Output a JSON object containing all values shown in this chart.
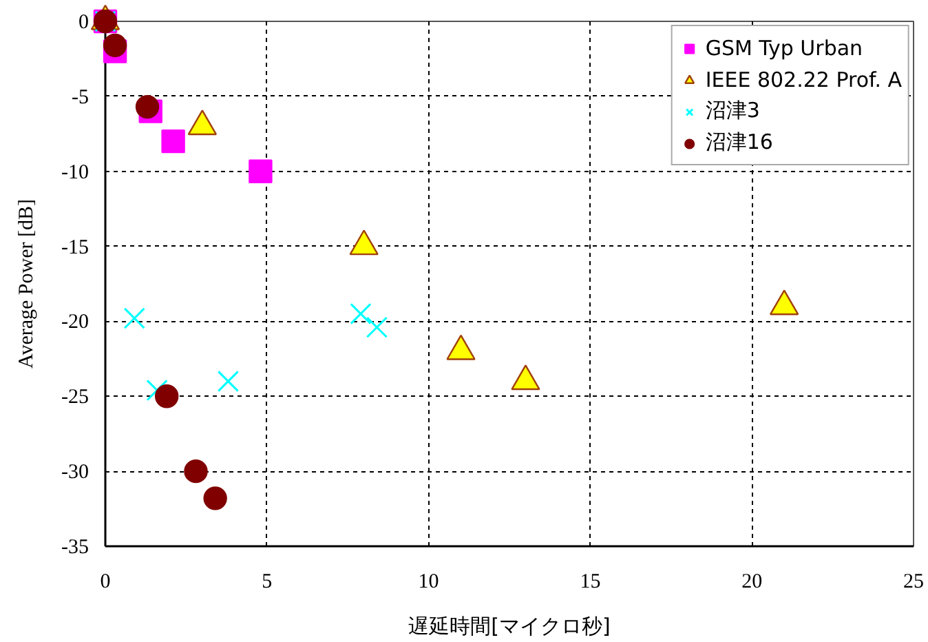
{
  "chart_data": {
    "type": "scatter",
    "xlabel": "遅延時間[マイクロ秒]",
    "ylabel": "Average Power [dB]",
    "xlim": [
      0,
      25
    ],
    "ylim": [
      -35,
      0
    ],
    "xticks": [
      0,
      5,
      10,
      15,
      20,
      25
    ],
    "yticks": [
      -35,
      -30,
      -25,
      -20,
      -15,
      -10,
      -5,
      0
    ],
    "grid": true,
    "legend": "top right",
    "series": [
      {
        "name": "GSM Typ Urban",
        "color": "#ff00ff",
        "marker": "square",
        "x": [
          0,
          0.3,
          1.4,
          2.1,
          4.8
        ],
        "values": [
          0,
          -2,
          -6,
          -8,
          -10
        ]
      },
      {
        "name": "IEEE 802.22 Prof. A",
        "color": "#ffff00",
        "marker": "triangle",
        "x": [
          0,
          3,
          8,
          11,
          13,
          21
        ],
        "values": [
          0,
          -7,
          -15,
          -22,
          -24,
          -19
        ]
      },
      {
        "name": "沼津3",
        "color": "#00ffff",
        "marker": "cross",
        "x": [
          0,
          0.9,
          1.6,
          3.8,
          7.9,
          8.4
        ],
        "values": [
          0,
          -19.8,
          -24.6,
          -24,
          -19.5,
          -20.4
        ]
      },
      {
        "name": "沼津16",
        "color": "#800000",
        "marker": "circle",
        "x": [
          0,
          0.3,
          1.3,
          1.9,
          2.8,
          3.4
        ],
        "values": [
          0,
          -1.6,
          -5.7,
          -25,
          -30,
          -31.8
        ]
      }
    ]
  }
}
